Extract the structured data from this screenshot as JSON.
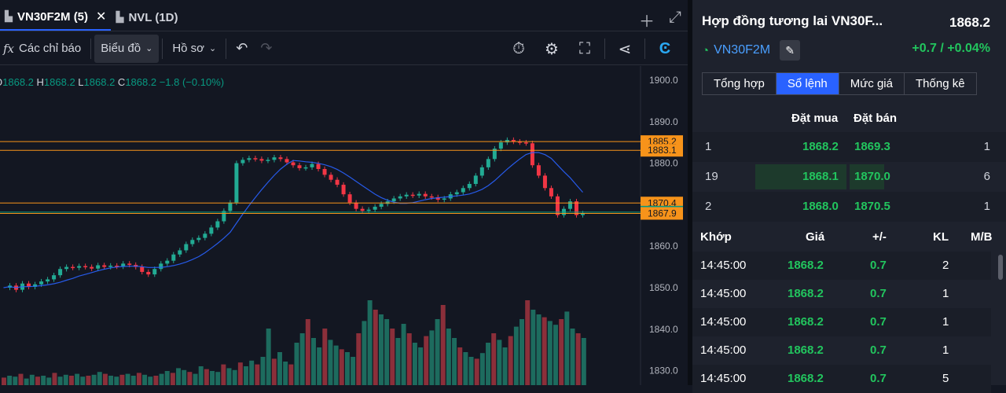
{
  "tabs": [
    {
      "label": "VN30F2M (5)",
      "active": true,
      "closable": true
    },
    {
      "label": "NVL (1D)",
      "active": false,
      "closable": false
    }
  ],
  "toolbar": {
    "indicators_label": "Các chỉ báo",
    "chart_label": "Biểu đồ",
    "profile_label": "Hồ sơ"
  },
  "ohlc": {
    "o_label": "O",
    "o": "1868.2",
    "h_label": "H",
    "h": "1868.2",
    "l_label": "L",
    "l": "1868.2",
    "c_label": "C",
    "c": "1868.2",
    "change": "−1.8 (−0.10%)"
  },
  "chart_data": {
    "type": "candlestick",
    "y_ticks": [
      "1900.0",
      "1890.0",
      "1880.0",
      "1870.0",
      "1860.0",
      "1850.0",
      "1840.0",
      "1830.0"
    ],
    "ylim": [
      1828,
      1902
    ],
    "hlines": [
      {
        "label": "1885.2",
        "value": 1885.2,
        "color": "#f7931a"
      },
      {
        "label": "1883.1",
        "value": 1883.1,
        "color": "#f7931a"
      },
      {
        "label": "1870.4",
        "value": 1870.4,
        "color": "#f7931a"
      },
      {
        "label": "1868.2",
        "value": 1868.2,
        "color": "#089981"
      },
      {
        "label": "1867.9",
        "value": 1867.9,
        "color": "#f7931a"
      }
    ]
  },
  "panel": {
    "title": "Hợp đồng tương lai VN30F...",
    "price": "1868.2",
    "symbol": "VN30F2M",
    "change": "+0.7 / +0.04%",
    "tabs": [
      {
        "label": "Tổng hợp",
        "active": false
      },
      {
        "label": "Sổ lệnh",
        "active": true
      },
      {
        "label": "Mức giá",
        "active": false
      },
      {
        "label": "Thống kê",
        "active": false
      }
    ],
    "orderbook": {
      "bid_header": "Đặt mua",
      "ask_header": "Đặt bán",
      "rows": [
        {
          "bid_qty": "1",
          "bid": "1868.2",
          "ask": "1869.3",
          "ask_qty": "1"
        },
        {
          "bid_qty": "19",
          "bid": "1868.1",
          "ask": "1870.0",
          "ask_qty": "6"
        },
        {
          "bid_qty": "2",
          "bid": "1868.0",
          "ask": "1870.5",
          "ask_qty": "1"
        }
      ]
    },
    "trades": {
      "headers": [
        "Khớp",
        "Giá",
        "+/-",
        "KL",
        "M/B"
      ],
      "rows": [
        {
          "time": "14:45:00",
          "price": "1868.2",
          "chg": "0.7",
          "vol": "2"
        },
        {
          "time": "14:45:00",
          "price": "1868.2",
          "chg": "0.7",
          "vol": "1"
        },
        {
          "time": "14:45:00",
          "price": "1868.2",
          "chg": "0.7",
          "vol": "1"
        },
        {
          "time": "14:45:00",
          "price": "1868.2",
          "chg": "0.7",
          "vol": "1"
        },
        {
          "time": "14:45:00",
          "price": "1868.2",
          "chg": "0.7",
          "vol": "5"
        }
      ]
    }
  }
}
